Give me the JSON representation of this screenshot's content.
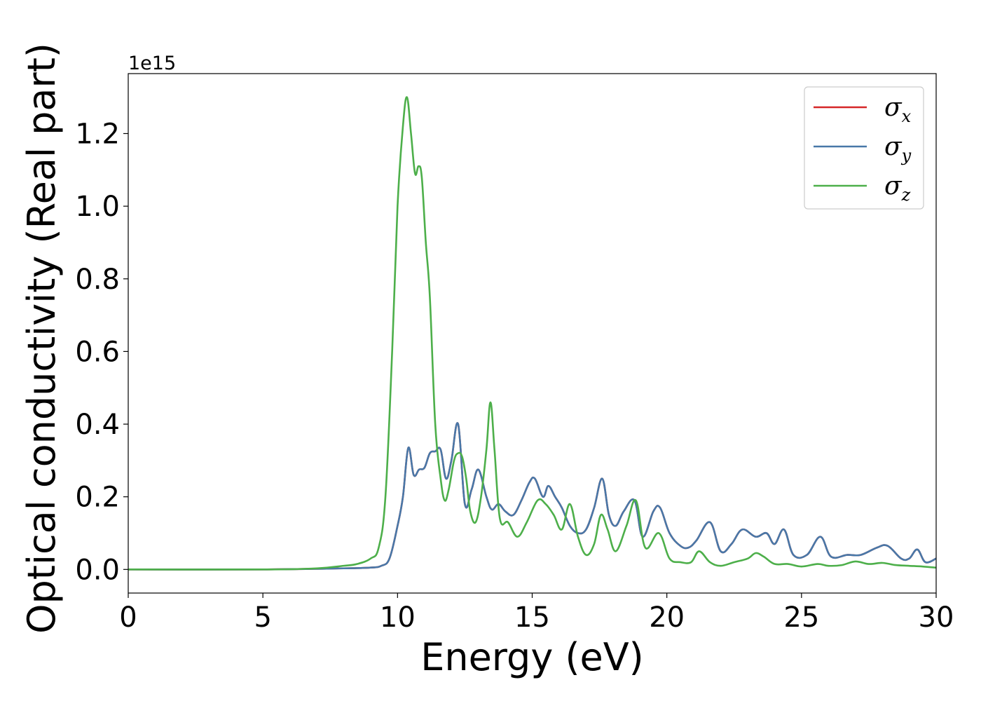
{
  "chart_data": {
    "type": "line",
    "title": "",
    "xlabel": "Energy (eV)",
    "ylabel": "Optical conductivity (Real part)",
    "y_offset_text": "1e15",
    "xlim": [
      0,
      30
    ],
    "ylim": [
      -0.065,
      1.365
    ],
    "xticks": [
      0,
      5,
      10,
      15,
      20,
      25,
      30
    ],
    "xtick_labels": [
      "0",
      "5",
      "10",
      "15",
      "20",
      "25",
      "30"
    ],
    "yticks": [
      0.0,
      0.2,
      0.4,
      0.6,
      0.8,
      1.0,
      1.2
    ],
    "ytick_labels": [
      "0.0",
      "0.2",
      "0.4",
      "0.6",
      "0.8",
      "1.0",
      "1.2"
    ],
    "grid": false,
    "legend": {
      "position": "upper-right"
    },
    "series": [
      {
        "name": "σx",
        "sym": "σ",
        "sub": "x",
        "color": "#d62728",
        "x": [
          0,
          5,
          8,
          9,
          9.4,
          9.7,
          10.0,
          10.2,
          10.4,
          10.6,
          10.8,
          11.0,
          11.2,
          11.4,
          11.6,
          11.8,
          12.0,
          12.25,
          12.5,
          12.75,
          13.0,
          13.3,
          13.5,
          13.75,
          14.0,
          14.3,
          14.6,
          14.9,
          15.1,
          15.4,
          15.6,
          15.85,
          16.1,
          16.4,
          16.7,
          17.0,
          17.3,
          17.6,
          17.85,
          18.1,
          18.4,
          18.8,
          19.1,
          19.5,
          19.75,
          20.1,
          20.5,
          20.8,
          21.1,
          21.6,
          22.0,
          22.4,
          22.8,
          23.3,
          23.7,
          24.0,
          24.35,
          24.7,
          25.2,
          25.7,
          26.1,
          26.7,
          27.2,
          27.8,
          28.2,
          28.7,
          29.0,
          29.3,
          29.6,
          30.0
        ],
        "values": [
          0.0,
          0.0,
          0.003,
          0.005,
          0.01,
          0.03,
          0.12,
          0.2,
          0.335,
          0.26,
          0.275,
          0.28,
          0.32,
          0.325,
          0.33,
          0.25,
          0.3,
          0.4,
          0.18,
          0.22,
          0.275,
          0.2,
          0.165,
          0.18,
          0.16,
          0.15,
          0.19,
          0.24,
          0.25,
          0.2,
          0.23,
          0.2,
          0.17,
          0.12,
          0.1,
          0.11,
          0.17,
          0.25,
          0.15,
          0.12,
          0.16,
          0.19,
          0.09,
          0.16,
          0.17,
          0.1,
          0.065,
          0.06,
          0.08,
          0.13,
          0.05,
          0.07,
          0.11,
          0.09,
          0.1,
          0.07,
          0.11,
          0.04,
          0.04,
          0.09,
          0.035,
          0.04,
          0.04,
          0.06,
          0.065,
          0.03,
          0.03,
          0.055,
          0.02,
          0.03
        ]
      },
      {
        "name": "σy",
        "sym": "σ",
        "sub": "y",
        "color": "#4878a8",
        "x": [
          0,
          5,
          8,
          9,
          9.4,
          9.7,
          10.0,
          10.2,
          10.4,
          10.6,
          10.8,
          11.0,
          11.2,
          11.4,
          11.6,
          11.8,
          12.0,
          12.25,
          12.5,
          12.75,
          13.0,
          13.3,
          13.5,
          13.75,
          14.0,
          14.3,
          14.6,
          14.9,
          15.1,
          15.4,
          15.6,
          15.85,
          16.1,
          16.4,
          16.7,
          17.0,
          17.3,
          17.6,
          17.85,
          18.1,
          18.4,
          18.8,
          19.1,
          19.5,
          19.75,
          20.1,
          20.5,
          20.8,
          21.1,
          21.6,
          22.0,
          22.4,
          22.8,
          23.3,
          23.7,
          24.0,
          24.35,
          24.7,
          25.2,
          25.7,
          26.1,
          26.7,
          27.2,
          27.8,
          28.2,
          28.7,
          29.0,
          29.3,
          29.6,
          30.0
        ],
        "values": [
          0.0,
          0.0,
          0.003,
          0.005,
          0.01,
          0.03,
          0.12,
          0.2,
          0.335,
          0.26,
          0.275,
          0.28,
          0.32,
          0.325,
          0.33,
          0.25,
          0.3,
          0.4,
          0.18,
          0.22,
          0.275,
          0.2,
          0.165,
          0.18,
          0.16,
          0.15,
          0.19,
          0.24,
          0.25,
          0.2,
          0.23,
          0.2,
          0.17,
          0.12,
          0.1,
          0.11,
          0.17,
          0.25,
          0.15,
          0.12,
          0.16,
          0.19,
          0.09,
          0.16,
          0.17,
          0.1,
          0.065,
          0.06,
          0.08,
          0.13,
          0.05,
          0.07,
          0.11,
          0.09,
          0.1,
          0.07,
          0.11,
          0.04,
          0.04,
          0.09,
          0.035,
          0.04,
          0.04,
          0.06,
          0.065,
          0.03,
          0.03,
          0.055,
          0.02,
          0.03
        ]
      },
      {
        "name": "σz",
        "sym": "σ",
        "sub": "z",
        "color": "#4daf4a",
        "x": [
          0,
          5,
          7,
          8,
          8.5,
          9.0,
          9.3,
          9.55,
          9.8,
          10.0,
          10.2,
          10.35,
          10.5,
          10.65,
          10.78,
          10.9,
          11.05,
          11.2,
          11.4,
          11.6,
          11.75,
          11.9,
          12.1,
          12.25,
          12.4,
          12.55,
          12.7,
          12.9,
          13.1,
          13.3,
          13.45,
          13.6,
          13.8,
          14.1,
          14.45,
          14.8,
          15.2,
          15.5,
          15.8,
          16.1,
          16.4,
          16.7,
          17.0,
          17.3,
          17.55,
          17.8,
          18.1,
          18.5,
          18.85,
          19.2,
          19.7,
          20.1,
          20.5,
          20.9,
          21.2,
          21.6,
          22.0,
          22.5,
          23.0,
          23.3,
          23.6,
          24.0,
          24.5,
          25.0,
          25.6,
          26.0,
          26.5,
          27.0,
          27.5,
          28.0,
          28.5,
          29.0,
          29.5,
          30.0
        ],
        "values": [
          0.0,
          0.0,
          0.003,
          0.01,
          0.015,
          0.03,
          0.06,
          0.2,
          0.6,
          1.0,
          1.22,
          1.3,
          1.2,
          1.09,
          1.11,
          1.08,
          0.9,
          0.75,
          0.4,
          0.25,
          0.19,
          0.22,
          0.3,
          0.32,
          0.31,
          0.25,
          0.16,
          0.13,
          0.2,
          0.33,
          0.46,
          0.33,
          0.14,
          0.13,
          0.09,
          0.13,
          0.19,
          0.18,
          0.15,
          0.11,
          0.18,
          0.09,
          0.04,
          0.07,
          0.15,
          0.11,
          0.05,
          0.12,
          0.19,
          0.06,
          0.1,
          0.03,
          0.02,
          0.02,
          0.05,
          0.02,
          0.01,
          0.02,
          0.03,
          0.045,
          0.035,
          0.015,
          0.015,
          0.008,
          0.015,
          0.01,
          0.012,
          0.022,
          0.015,
          0.018,
          0.012,
          0.01,
          0.008,
          0.005
        ]
      }
    ]
  }
}
